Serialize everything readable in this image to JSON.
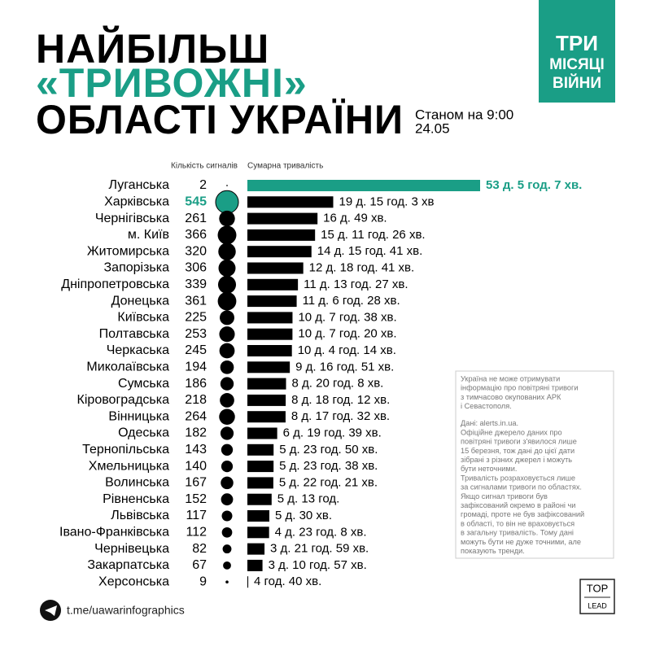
{
  "chart_data": {
    "type": "bar",
    "title": [
      "НАЙБІЛЬШ",
      "«ТРИВОЖНІ»",
      "ОБЛАСТІ УКРАЇНИ"
    ],
    "subtitle": [
      "Станом на 9:00",
      "24.05"
    ],
    "badge": [
      "ТРИ",
      "МІСЯЦІ",
      "ВІЙНИ"
    ],
    "categories": [
      "Луганська",
      "Харківська",
      "Чернігівська",
      "м. Київ",
      "Житомирська",
      "Запорізька",
      "Дніпропетровська",
      "Донецька",
      "Київська",
      "Полтавська",
      "Черкаська",
      "Миколаївська",
      "Сумська",
      "Кіровоградська",
      "Вінницька",
      "Одеська",
      "Тернопільська",
      "Хмельницька",
      "Волинська",
      "Рівненська",
      "Львівська",
      "Івано-Франківська",
      "Чернівецька",
      "Закарпатська",
      "Херсонська"
    ],
    "series": [
      {
        "name": "Кількість сигналів",
        "color": "#000000",
        "colors": [
          "#000000",
          "#1a9e86",
          "#000000",
          "#000000",
          "#000000",
          "#000000",
          "#000000",
          "#000000",
          "#000000",
          "#000000",
          "#000000",
          "#000000",
          "#000000",
          "#000000",
          "#000000",
          "#000000",
          "#000000",
          "#000000",
          "#000000",
          "#000000",
          "#000000",
          "#000000",
          "#000000",
          "#000000",
          "#000000"
        ],
        "values": [
          2,
          545,
          261,
          366,
          320,
          306,
          339,
          361,
          225,
          253,
          245,
          194,
          186,
          218,
          264,
          182,
          143,
          140,
          167,
          152,
          117,
          112,
          82,
          67,
          9
        ]
      },
      {
        "name": "Сумарна тривалість",
        "color": "#000000",
        "colors": [
          "#1a9e86",
          "#000000",
          "#000000",
          "#000000",
          "#000000",
          "#000000",
          "#000000",
          "#000000",
          "#000000",
          "#000000",
          "#000000",
          "#000000",
          "#000000",
          "#000000",
          "#000000",
          "#000000",
          "#000000",
          "#000000",
          "#000000",
          "#000000",
          "#000000",
          "#000000",
          "#000000",
          "#000000",
          "#000000"
        ],
        "values": [
          76627,
          28263,
          23089,
          22286,
          21101,
          18401,
          16647,
          16228,
          14858,
          14840,
          14654,
          13971,
          12728,
          12612,
          12572,
          9819,
          8630,
          8618,
          8541,
          7980,
          7230,
          7148,
          5639,
          4977,
          280
        ],
        "value_labels": [
          "53 д. 5 год. 7 хв.",
          "19 д. 15 год. 3 хв",
          "16 д. 49 хв.",
          "15 д. 11 год. 26 хв.",
          "14 д. 15 год. 41 хв.",
          "12 д. 18 год. 41 хв.",
          "11 д. 13 год. 27 хв.",
          "11 д. 6 год. 28 хв.",
          "10 д. 7 год. 38 хв.",
          "10 д. 7 год. 20 хв.",
          "10 д. 4 год. 14 хв.",
          "9 д. 16 год. 51 хв.",
          "8 д. 20 год. 8 хв.",
          "8 д. 18 год. 12 хв.",
          "8 д. 17 год. 32 хв.",
          "6 д. 19 год. 39 хв.",
          "5 д. 23 год. 50 хв.",
          "5 д. 23 год. 38 хв.",
          "5 д. 22 год. 21 хв.",
          "5 д. 13 год.",
          "5 д. 30 хв.",
          "4 д. 23 год. 8 хв.",
          "3 д. 21 год. 59 хв.",
          "3 д. 10 год. 57 хв.",
          "4 год. 40 хв."
        ]
      }
    ],
    "notes": [
      "Україна не може отримувати",
      "інформацію про повітряні тривоги",
      "з тимчасово окупованих АРК",
      "і Севастополя.",
      "Дані: alerts.in.ua.",
      "Офіційне джерело даних про",
      "повітряні тривоги з'явилося лише",
      "15 березня, тож дані до цієї дати",
      "зібрані з різних джерел і можуть",
      "бути неточними.",
      "Тривалість розраховується лише",
      "за сигналами тривоги по областях.",
      "Якщо сигнал тривоги був",
      "зафіксований окремо в районі чи",
      "громаді, проте не був зафіксований",
      "в області, то він не враховується",
      "в загальну тривалість. Тому дані",
      "можуть бути не дуже точними, але",
      "показують тренди."
    ],
    "source": "t.me/uawarinfographics",
    "logo": [
      "TOP",
      "LEAD"
    ]
  }
}
